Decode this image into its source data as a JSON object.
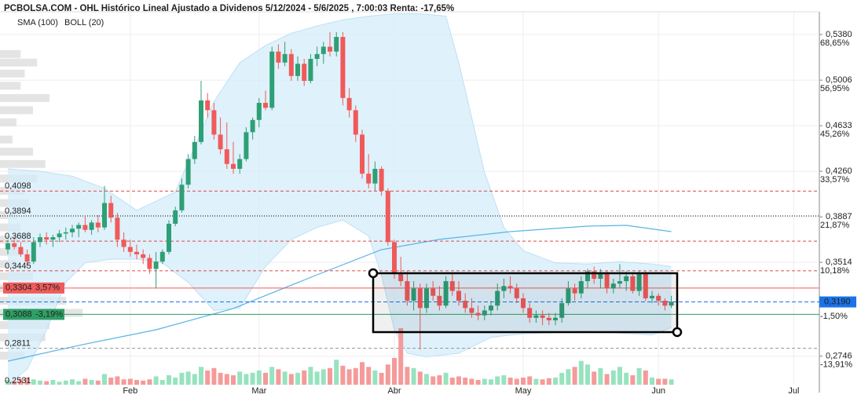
{
  "chart_data": {
    "type": "candlestick",
    "title": "PCBOLSA.COM - OHL Histórico Lineal Ajustado a Dividenos 5/12/2024 - 5/6/2025 , 7:00:03 Renta: -17,65%",
    "legend": [
      {
        "name": "SMA (100)",
        "color": "#5ab4e6"
      },
      {
        "name": "BOLL (20)",
        "color": "#c4ccd4"
      }
    ],
    "up_color": "#2e9f76",
    "down_color": "#f05a5a",
    "up_volume_color": "#97e3bf",
    "down_volume_color": "#f59a9a",
    "ylim": [
      0.2512,
      0.5566
    ],
    "yticks": [
      {
        "value": 0.538,
        "label": "0,5380"
      },
      {
        "value": 0.5006,
        "label": "0,5006"
      },
      {
        "value": 0.4633,
        "label": "0,4633"
      },
      {
        "value": 0.426,
        "label": "0,4260"
      },
      {
        "value": 0.3887,
        "label": "0,3887"
      },
      {
        "value": 0.3514,
        "label": "0,3514"
      },
      {
        "value": 0.2746,
        "label": "0,2746"
      }
    ],
    "pct_labels": [
      {
        "value": 0.538,
        "label": "68,65%"
      },
      {
        "value": 0.5006,
        "label": "56,95%"
      },
      {
        "value": 0.4633,
        "label": "45,26%"
      },
      {
        "value": 0.426,
        "label": "33,57%"
      },
      {
        "value": 0.3887,
        "label": "21,87%"
      },
      {
        "value": 0.3514,
        "label": "10,18%"
      },
      {
        "value": 0.3142,
        "label": "-1,50%"
      },
      {
        "value": 0.2746,
        "label": "-13,91%"
      }
    ],
    "levels": [
      {
        "value": 0.4098,
        "label": "0,4098",
        "color": "#e04848",
        "dash": "dashed"
      },
      {
        "value": 0.3894,
        "label": "0,3894",
        "color": "#000000",
        "dash": "dotted"
      },
      {
        "value": 0.3688,
        "label": "0,3688",
        "color": "#e04848",
        "dash": "dashed"
      },
      {
        "value": 0.3445,
        "label": "0,3445",
        "color": "#e04848",
        "dash": "dashed"
      },
      {
        "value": 0.3304,
        "label": "0,3304",
        "pct": "3,57%",
        "color": "#f05a5a",
        "dash": "solid"
      },
      {
        "value": 0.3088,
        "label": "0,3088",
        "pct": "-3,19%",
        "color": "#2e9f66",
        "dash": "solid"
      },
      {
        "value": 0.2811,
        "label": "0,2811",
        "color": "#999999",
        "dash": "dashed"
      },
      {
        "value": 0.2531,
        "label": "0,2531",
        "color": "#999999",
        "dash": "none"
      }
    ],
    "last": {
      "value": 0.319,
      "label": "0,3190",
      "color": "#1a73e8"
    },
    "categories": [
      null,
      null,
      null,
      null,
      null,
      null,
      null,
      null,
      null,
      null,
      null,
      null,
      null,
      null,
      null,
      null,
      null,
      null,
      null,
      "Feb",
      null,
      null,
      null,
      null,
      null,
      null,
      null,
      null,
      null,
      null,
      null,
      null,
      null,
      null,
      null,
      null,
      null,
      null,
      null,
      "Mar",
      null,
      null,
      null,
      null,
      null,
      null,
      null,
      null,
      null,
      null,
      null,
      null,
      null,
      null,
      null,
      null,
      null,
      null,
      null,
      null,
      "Abr",
      null,
      null,
      null,
      null,
      null,
      null,
      null,
      null,
      null,
      null,
      null,
      null,
      null,
      null,
      null,
      null,
      null,
      null,
      null,
      "May",
      null,
      null,
      null,
      null,
      null,
      null,
      null,
      null,
      null,
      null,
      null,
      null,
      null,
      null,
      null,
      null,
      null,
      null,
      null,
      null,
      "Jun",
      null,
      null,
      null,
      null,
      null,
      null,
      null,
      null,
      null,
      null,
      null,
      null,
      null,
      null,
      null,
      null,
      null,
      null,
      null,
      null,
      "Jul",
      null,
      null,
      null
    ],
    "candles": [
      [
        0.362,
        0.37,
        0.358,
        0.367
      ],
      [
        0.367,
        0.372,
        0.362,
        0.364
      ],
      [
        0.364,
        0.368,
        0.356,
        0.358
      ],
      [
        0.358,
        0.362,
        0.348,
        0.352
      ],
      [
        0.352,
        0.372,
        0.35,
        0.368
      ],
      [
        0.368,
        0.375,
        0.364,
        0.372
      ],
      [
        0.372,
        0.376,
        0.366,
        0.37
      ],
      [
        0.37,
        0.374,
        0.364,
        0.372
      ],
      [
        0.372,
        0.378,
        0.368,
        0.375
      ],
      [
        0.375,
        0.38,
        0.37,
        0.376
      ],
      [
        0.376,
        0.382,
        0.372,
        0.379
      ],
      [
        0.379,
        0.384,
        0.372,
        0.382
      ],
      [
        0.382,
        0.39,
        0.376,
        0.378
      ],
      [
        0.378,
        0.386,
        0.374,
        0.384
      ],
      [
        0.384,
        0.39,
        0.376,
        0.38
      ],
      [
        0.38,
        0.414,
        0.378,
        0.4
      ],
      [
        0.4,
        0.406,
        0.384,
        0.388
      ],
      [
        0.388,
        0.392,
        0.364,
        0.37
      ],
      [
        0.37,
        0.376,
        0.36,
        0.364
      ],
      [
        0.364,
        0.37,
        0.356,
        0.36
      ],
      [
        0.36,
        0.366,
        0.354,
        0.358
      ],
      [
        0.358,
        0.362,
        0.35,
        0.355
      ],
      [
        0.355,
        0.358,
        0.342,
        0.346
      ],
      [
        0.346,
        0.36,
        0.33,
        0.352
      ],
      [
        0.352,
        0.362,
        0.35,
        0.36
      ],
      [
        0.36,
        0.386,
        0.358,
        0.383
      ],
      [
        0.383,
        0.397,
        0.381,
        0.394
      ],
      [
        0.394,
        0.42,
        0.392,
        0.415
      ],
      [
        0.415,
        0.44,
        0.412,
        0.436
      ],
      [
        0.436,
        0.455,
        0.432,
        0.45
      ],
      [
        0.45,
        0.5,
        0.448,
        0.484
      ],
      [
        0.484,
        0.49,
        0.47,
        0.476
      ],
      [
        0.476,
        0.482,
        0.452,
        0.456
      ],
      [
        0.456,
        0.47,
        0.44,
        0.444
      ],
      [
        0.444,
        0.466,
        0.428,
        0.432
      ],
      [
        0.432,
        0.45,
        0.424,
        0.428
      ],
      [
        0.428,
        0.44,
        0.424,
        0.436
      ],
      [
        0.436,
        0.462,
        0.434,
        0.458
      ],
      [
        0.458,
        0.47,
        0.452,
        0.468
      ],
      [
        0.468,
        0.486,
        0.462,
        0.482
      ],
      [
        0.482,
        0.492,
        0.476,
        0.478
      ],
      [
        0.478,
        0.528,
        0.476,
        0.524
      ],
      [
        0.524,
        0.53,
        0.51,
        0.515
      ],
      [
        0.515,
        0.532,
        0.512,
        0.522
      ],
      [
        0.522,
        0.526,
        0.5,
        0.504
      ],
      [
        0.504,
        0.52,
        0.5,
        0.514
      ],
      [
        0.514,
        0.518,
        0.496,
        0.5
      ],
      [
        0.5,
        0.522,
        0.498,
        0.518
      ],
      [
        0.518,
        0.528,
        0.512,
        0.522
      ],
      [
        0.522,
        0.532,
        0.514,
        0.528
      ],
      [
        0.528,
        0.54,
        0.52,
        0.524
      ],
      [
        0.524,
        0.54,
        0.52,
        0.536
      ],
      [
        0.536,
        0.54,
        0.48,
        0.486
      ],
      [
        0.486,
        0.494,
        0.47,
        0.476
      ],
      [
        0.476,
        0.48,
        0.45,
        0.456
      ],
      [
        0.456,
        0.46,
        0.42,
        0.424
      ],
      [
        0.424,
        0.44,
        0.412,
        0.416
      ],
      [
        0.416,
        0.434,
        0.41,
        0.428
      ],
      [
        0.428,
        0.43,
        0.406,
        0.41
      ],
      [
        0.41,
        0.412,
        0.365,
        0.368
      ],
      [
        0.368,
        0.37,
        0.338,
        0.342
      ],
      [
        0.342,
        0.356,
        0.332,
        0.336
      ],
      [
        0.336,
        0.344,
        0.316,
        0.32
      ],
      [
        0.32,
        0.336,
        0.312,
        0.33
      ],
      [
        0.33,
        0.334,
        0.28,
        0.314
      ],
      [
        0.314,
        0.334,
        0.31,
        0.33
      ],
      [
        0.33,
        0.336,
        0.32,
        0.324
      ],
      [
        0.324,
        0.332,
        0.312,
        0.316
      ],
      [
        0.316,
        0.34,
        0.314,
        0.336
      ],
      [
        0.336,
        0.342,
        0.324,
        0.328
      ],
      [
        0.328,
        0.336,
        0.316,
        0.32
      ],
      [
        0.32,
        0.326,
        0.31,
        0.314
      ],
      [
        0.314,
        0.322,
        0.306,
        0.31
      ],
      [
        0.31,
        0.316,
        0.304,
        0.308
      ],
      [
        0.308,
        0.316,
        0.304,
        0.312
      ],
      [
        0.312,
        0.32,
        0.308,
        0.316
      ],
      [
        0.316,
        0.334,
        0.312,
        0.328
      ],
      [
        0.328,
        0.338,
        0.322,
        0.332
      ],
      [
        0.332,
        0.34,
        0.326,
        0.33
      ],
      [
        0.33,
        0.334,
        0.318,
        0.322
      ],
      [
        0.322,
        0.326,
        0.31,
        0.314
      ],
      [
        0.314,
        0.318,
        0.302,
        0.306
      ],
      [
        0.306,
        0.312,
        0.302,
        0.308
      ],
      [
        0.308,
        0.312,
        0.3,
        0.306
      ],
      [
        0.306,
        0.31,
        0.3,
        0.304
      ],
      [
        0.304,
        0.31,
        0.3,
        0.306
      ],
      [
        0.306,
        0.322,
        0.302,
        0.318
      ],
      [
        0.318,
        0.336,
        0.316,
        0.33
      ],
      [
        0.33,
        0.334,
        0.32,
        0.326
      ],
      [
        0.326,
        0.34,
        0.322,
        0.336
      ],
      [
        0.336,
        0.346,
        0.33,
        0.344
      ],
      [
        0.344,
        0.348,
        0.334,
        0.338
      ],
      [
        0.338,
        0.346,
        0.33,
        0.342
      ],
      [
        0.342,
        0.344,
        0.326,
        0.33
      ],
      [
        0.33,
        0.338,
        0.326,
        0.334
      ],
      [
        0.334,
        0.35,
        0.33,
        0.336
      ],
      [
        0.336,
        0.344,
        0.328,
        0.34
      ],
      [
        0.34,
        0.342,
        0.326,
        0.328
      ],
      [
        0.328,
        0.344,
        0.324,
        0.342
      ],
      [
        0.342,
        0.344,
        0.32,
        0.322
      ],
      [
        0.322,
        0.328,
        0.318,
        0.324
      ],
      [
        0.324,
        0.326,
        0.316,
        0.32
      ],
      [
        0.32,
        0.322,
        0.312,
        0.316
      ],
      [
        0.316,
        0.324,
        0.314,
        0.319
      ],
      null,
      null,
      null,
      null,
      null,
      null,
      null,
      null,
      null,
      null,
      null,
      null,
      null,
      null,
      null,
      null,
      null,
      null,
      null,
      null,
      null,
      null
    ],
    "volume": [
      8,
      6,
      10,
      12,
      9,
      7,
      6,
      8,
      5,
      7,
      9,
      6,
      10,
      8,
      7,
      18,
      12,
      14,
      9,
      10,
      8,
      7,
      9,
      14,
      8,
      16,
      12,
      20,
      22,
      18,
      30,
      24,
      28,
      20,
      18,
      16,
      22,
      18,
      20,
      24,
      20,
      30,
      26,
      22,
      18,
      20,
      24,
      30,
      22,
      26,
      28,
      42,
      32,
      26,
      28,
      38,
      30,
      24,
      20,
      34,
      45,
      95,
      30,
      28,
      22,
      18,
      14,
      16,
      20,
      12,
      14,
      12,
      10,
      8,
      10,
      9,
      14,
      16,
      12,
      10,
      12,
      14,
      10,
      9,
      11,
      12,
      20,
      26,
      30,
      40,
      34,
      22,
      28,
      18,
      24,
      30,
      20,
      16,
      28,
      24,
      12,
      10,
      10,
      9,
      null,
      null,
      null,
      null,
      null,
      null,
      null,
      null,
      null,
      null,
      null,
      null,
      null,
      null,
      null,
      null,
      null,
      null,
      null,
      null,
      null,
      null
    ],
    "bollinger": {
      "upper_x": [
        0,
        5,
        10,
        15,
        20,
        26,
        32,
        36,
        40,
        44,
        48,
        52,
        56,
        60,
        64,
        68,
        70,
        72,
        74,
        77,
        80,
        85,
        90,
        95,
        100,
        103
      ],
      "upper": [
        0.428,
        0.426,
        0.422,
        0.412,
        0.394,
        0.409,
        0.483,
        0.515,
        0.529,
        0.539,
        0.545,
        0.55,
        0.553,
        0.555,
        0.555,
        0.553,
        0.515,
        0.47,
        0.425,
        0.38,
        0.361,
        0.351,
        0.35,
        0.352,
        0.35,
        0.348
      ],
      "lower_x": [
        0,
        3,
        6,
        9,
        12,
        16,
        20,
        24,
        28,
        32,
        36,
        40,
        44,
        48,
        52,
        56,
        58,
        60,
        62,
        65,
        70,
        75,
        80,
        90,
        100,
        103
      ],
      "lower": [
        0.251,
        0.264,
        0.296,
        0.335,
        0.351,
        0.354,
        0.354,
        0.351,
        0.335,
        0.312,
        0.314,
        0.348,
        0.37,
        0.38,
        0.386,
        0.373,
        0.341,
        0.296,
        0.277,
        0.274,
        0.277,
        0.29,
        0.293,
        0.295,
        0.292,
        0.298
      ]
    },
    "sma": {
      "x": [
        0,
        11,
        23,
        35,
        48,
        58,
        67,
        78,
        90,
        96,
        103
      ],
      "values": [
        0.2705,
        0.2834,
        0.2962,
        0.3136,
        0.3412,
        0.3618,
        0.3702,
        0.3766,
        0.3811,
        0.3817,
        0.3766
      ]
    },
    "volume_profile": {
      "prices": [
        0.522,
        0.515,
        0.506,
        0.496,
        0.486,
        0.476,
        0.466,
        0.452,
        0.442,
        0.432,
        0.42,
        0.41,
        0.4,
        0.39,
        0.38,
        0.37,
        0.36,
        0.35,
        0.34,
        0.33,
        0.32,
        0.31,
        0.3,
        0.29,
        0.275
      ],
      "values": [
        25,
        45,
        30,
        25,
        60,
        40,
        20,
        15,
        40,
        55,
        45,
        30,
        35,
        20,
        25,
        35,
        30,
        20,
        40,
        70,
        80,
        100,
        60,
        55,
        30
      ]
    }
  }
}
